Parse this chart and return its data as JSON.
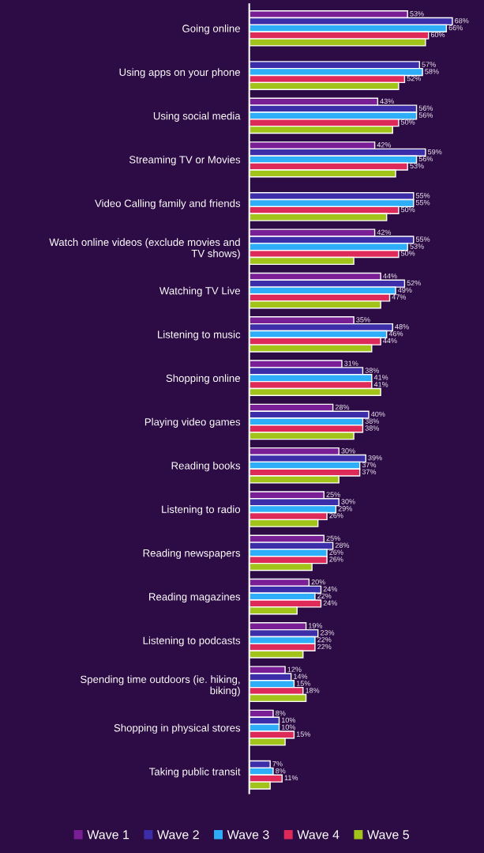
{
  "chart_data": {
    "type": "bar",
    "orientation": "horizontal",
    "categories": [
      "Going online",
      "Using apps on your phone",
      "Using social media",
      "Streaming TV or Movies",
      "Video Calling family and friends",
      "Watch online videos (exclude movies and\nTV shows)",
      "Watching TV Live",
      "Listening to music",
      "Shopping online",
      "Playing video games",
      "Reading books",
      "Listening to radio",
      "Reading newspapers",
      "Reading magazines",
      "Listening to podcasts",
      "Spending time outdoors (ie. hiking,\nbiking)",
      "Shopping in physical stores",
      "Taking public transit"
    ],
    "series": [
      {
        "name": "Wave 1",
        "color": "#7a1e96",
        "values": [
          53,
          null,
          43,
          42,
          null,
          42,
          44,
          35,
          31,
          28,
          30,
          25,
          25,
          20,
          19,
          12,
          8,
          null
        ],
        "value_labels": [
          "53%",
          null,
          "43%",
          "42%",
          null,
          "42%",
          "44%",
          "35%",
          "31%",
          "28%",
          "30%",
          "25%",
          "25%",
          "20%",
          "19%",
          "12%",
          "8%",
          null
        ]
      },
      {
        "name": "Wave 2",
        "color": "#3b2ea8",
        "values": [
          68,
          57,
          56,
          59,
          55,
          55,
          52,
          48,
          38,
          40,
          39,
          30,
          28,
          24,
          23,
          14,
          10,
          7
        ],
        "value_labels": [
          "68%",
          "57%",
          "56%",
          "59%",
          "55%",
          "55%",
          "52%",
          "48%",
          "38%",
          "40%",
          "39%",
          "30%",
          "28%",
          "24%",
          "23%",
          "14%",
          "10%",
          "7%"
        ]
      },
      {
        "name": "Wave 3",
        "color": "#2eadf8",
        "values": [
          66,
          58,
          56,
          56,
          55,
          53,
          49,
          46,
          41,
          38,
          37,
          29,
          26,
          22,
          22,
          15,
          10,
          8
        ],
        "value_labels": [
          "66%",
          "58%",
          "56%",
          "56%",
          "55%",
          "53%",
          "49%",
          "46%",
          "41%",
          "38%",
          "37%",
          "29%",
          "26%",
          "22%",
          "22%",
          "15%",
          "10%",
          "8%"
        ]
      },
      {
        "name": "Wave 4",
        "color": "#de2a58",
        "values": [
          60,
          52,
          50,
          53,
          50,
          50,
          47,
          44,
          41,
          38,
          37,
          26,
          26,
          24,
          22,
          18,
          15,
          11
        ],
        "value_labels": [
          "60%",
          "52%",
          "50%",
          "53%",
          "50%",
          "50%",
          "47%",
          "44%",
          "41%",
          "38%",
          "37%",
          "26%",
          "26%",
          "24%",
          "22%",
          "18%",
          "15%",
          "11%"
        ]
      },
      {
        "name": "Wave 5",
        "color": "#a2c31a",
        "values": [
          59,
          50,
          48,
          49,
          46,
          35,
          44,
          41,
          44,
          35,
          30,
          23,
          21,
          16,
          18,
          19,
          12,
          7
        ]
      }
    ],
    "legend": "bottom"
  }
}
